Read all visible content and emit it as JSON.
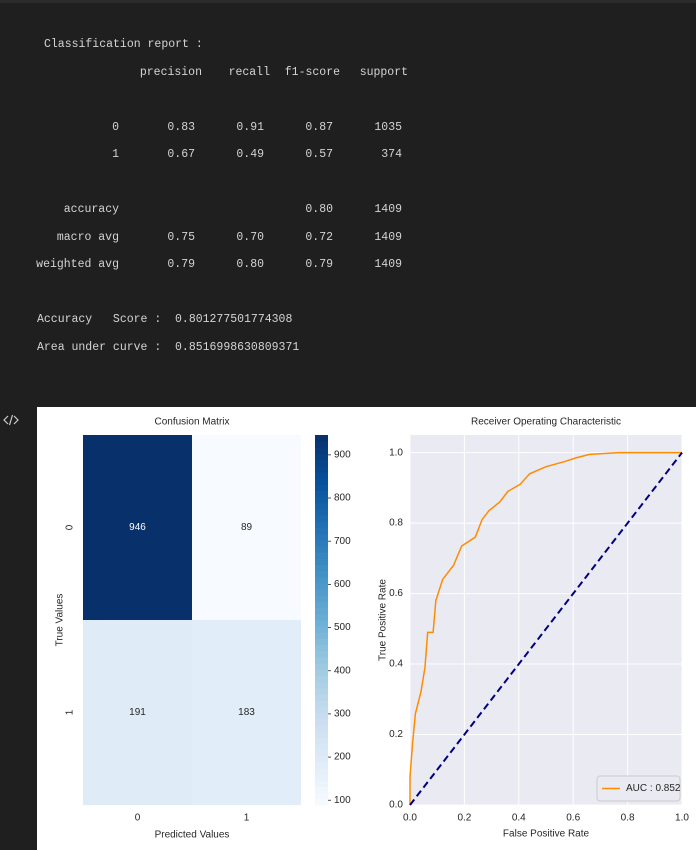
{
  "report": {
    "title": "Classification report :",
    "header": [
      "precision",
      "recall",
      "f1-score",
      "support"
    ],
    "rows": [
      {
        "label": "0",
        "precision": "0.83",
        "recall": "0.91",
        "f1_score": "0.87",
        "support": "1035"
      },
      {
        "label": "1",
        "precision": "0.67",
        "recall": "0.49",
        "f1_score": "0.57",
        "support": "374"
      },
      {
        "label": "accuracy",
        "f1_score": "0.80",
        "support": "1409"
      },
      {
        "label": "macro avg",
        "precision": "0.75",
        "recall": "0.70",
        "f1_score": "0.72",
        "support": "1409"
      },
      {
        "label": "weighted avg",
        "precision": "0.79",
        "recall": "0.80",
        "f1_score": "0.79",
        "support": "1409"
      }
    ],
    "summary": [
      "Accuracy   Score :  0.801277501774308",
      "Area under curve :  0.8516998630809371"
    ]
  },
  "chart_data": [
    {
      "type": "heatmap",
      "title": "Confusion Matrix",
      "x_label": "Predicted Values",
      "y_label": "True Values",
      "x_categories": [
        "0",
        "1"
      ],
      "y_categories": [
        "0",
        "1"
      ],
      "z": [
        [
          946,
          89
        ],
        [
          191,
          183
        ]
      ],
      "zlim": [
        89,
        946
      ],
      "zticks": [
        100,
        200,
        300,
        400,
        500,
        600,
        700,
        800,
        900
      ],
      "colormap": [
        "#f7fbff",
        "#deebf7",
        "#c6dbef",
        "#9ecae1",
        "#6baed6",
        "#4292c6",
        "#2171b5",
        "#08519c",
        "#08306b"
      ]
    },
    {
      "type": "line",
      "title": "Receiver Operating Characteristic",
      "x_label": "False Positive Rate",
      "y_label": "True Positive Rate",
      "xlim": [
        0,
        1
      ],
      "ylim": [
        0,
        1.05
      ],
      "xticks": [
        {
          "value": 0,
          "label": "0.0"
        },
        0.2,
        0.4,
        0.6,
        0.8,
        {
          "value": 1,
          "label": "1.0"
        }
      ],
      "yticks": [
        {
          "value": 0,
          "label": "0.0"
        },
        0.2,
        0.4,
        0.6,
        0.8,
        {
          "value": 1,
          "label": "1.0"
        }
      ],
      "grid": true,
      "legend": "lower right",
      "series": [
        {
          "name": "AUC : 0.852",
          "color": "#ff8c00",
          "x": [
            0,
            0,
            0.01,
            0.02,
            0.04,
            0.055,
            0.065,
            0.085,
            0.095,
            0.12,
            0.16,
            0.19,
            0.24,
            0.265,
            0.29,
            0.33,
            0.36,
            0.405,
            0.44,
            0.5,
            0.57,
            0.61,
            0.66,
            0.77,
            1
          ],
          "y": [
            0,
            0.08,
            0.18,
            0.26,
            0.32,
            0.39,
            0.49,
            0.49,
            0.58,
            0.64,
            0.68,
            0.735,
            0.76,
            0.81,
            0.835,
            0.86,
            0.89,
            0.91,
            0.94,
            0.96,
            0.975,
            0.985,
            0.995,
            1,
            1
          ]
        },
        {
          "color": "#000080",
          "dash": true,
          "x": [
            0,
            1
          ],
          "y": [
            0,
            1
          ]
        }
      ]
    }
  ]
}
